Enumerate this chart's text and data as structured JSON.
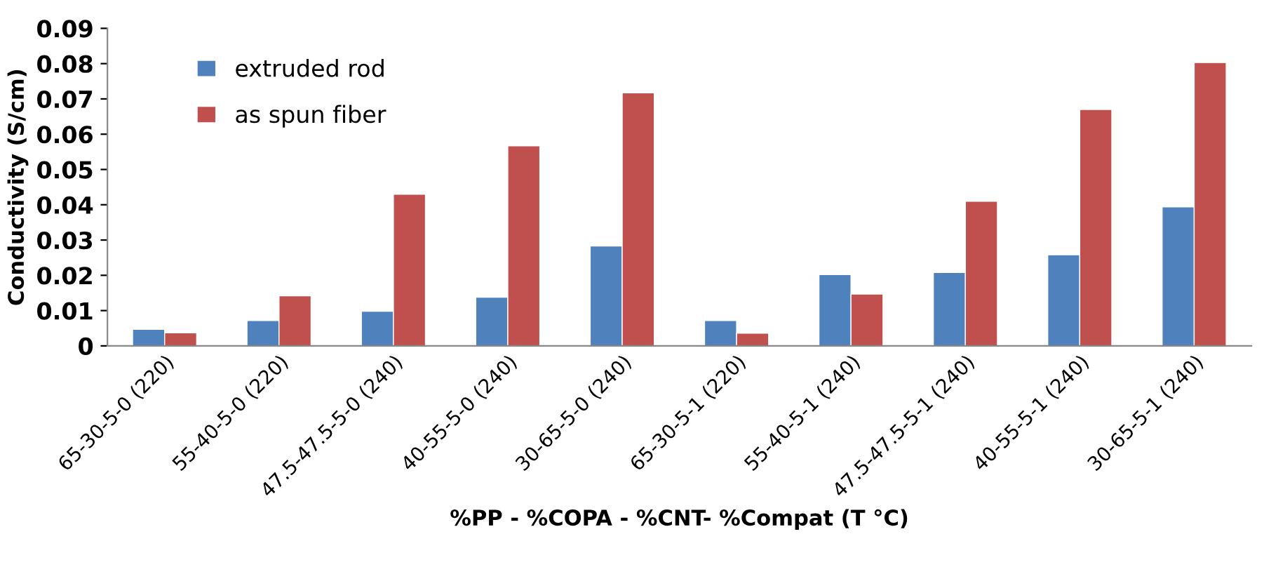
{
  "chart_data": {
    "type": "bar",
    "xlabel": "%PP - %COPA - %CNT- %Compat (T °C)",
    "ylabel": "Conductivity (S/cm)",
    "categories": [
      "65-30-5-0 (220)",
      "55-40-5-0 (220)",
      "47.5-47.5-5-0 (240)",
      "40-55-5-0 (240)",
      "30-65-5-0 (240)",
      "65-30-5-1 (220)",
      "55-40-5-1 (240)",
      "47.5-47.5-5-1 (240)",
      "40-55-5-1 (240)",
      "30-65-5-1 (240)"
    ],
    "series": [
      {
        "name": "extruded rod",
        "color": "#4f81bd",
        "values": [
          0.0047,
          0.0072,
          0.0098,
          0.0138,
          0.0283,
          0.0072,
          0.0202,
          0.0208,
          0.0258,
          0.0394
        ]
      },
      {
        "name": "as spun fiber",
        "color": "#c0504d",
        "values": [
          0.0037,
          0.0142,
          0.043,
          0.0567,
          0.0717,
          0.0036,
          0.0147,
          0.041,
          0.067,
          0.0803
        ]
      }
    ],
    "ylim": [
      0,
      0.09
    ],
    "yticks": [
      0,
      0.01,
      0.02,
      0.03,
      0.04,
      0.05,
      0.06,
      0.07,
      0.08,
      0.09
    ],
    "grid": false,
    "legend": "top left"
  }
}
